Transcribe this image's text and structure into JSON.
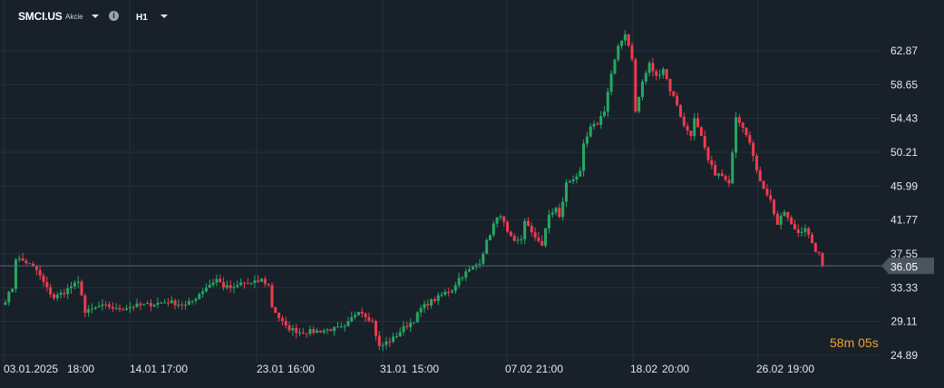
{
  "header": {
    "symbol": "SMCI.US",
    "asset_type": "Akcie",
    "timeframe": "H1",
    "info_icon": "info-icon",
    "symbol_dropdown_icon": "chevron-down-icon",
    "timeframe_dropdown_icon": "chevron-down-icon"
  },
  "countdown": {
    "minutes": "58",
    "minutes_unit": "m",
    "seconds": "05",
    "seconds_unit": "s"
  },
  "colors": {
    "background": "#18212a",
    "grid": "#26313a",
    "bull": "#26a862",
    "bear": "#ef3b4e",
    "price_line": "#5b6672",
    "price_tag_bg": "#4b5560",
    "axis_text": "#e2e7ec",
    "countdown": "#f2a32b"
  },
  "chart_data": {
    "type": "candlestick",
    "title": "",
    "y_axis": {
      "ticks": [
        "62.87",
        "58.65",
        "54.43",
        "50.21",
        "45.99",
        "41.77",
        "37.55",
        "33.33",
        "29.11",
        "24.89"
      ],
      "range": [
        24.0,
        66.0
      ]
    },
    "x_axis": {
      "ticks": [
        "03.01.2025",
        "18:00",
        "14.01",
        "17:00",
        "23.01",
        "16:00",
        "31.01",
        "15:00",
        "07.02",
        "21:00",
        "18.02",
        "20:00",
        "26.02",
        "19:00"
      ]
    },
    "last_price": "36.05",
    "last_price_value": 36.05,
    "grid": true,
    "close_path": [
      [
        0,
        31.8
      ],
      [
        2,
        33.3
      ],
      [
        3,
        37.0
      ],
      [
        6,
        36.5
      ],
      [
        9,
        35.5
      ],
      [
        12,
        33.2
      ],
      [
        14,
        32.1
      ],
      [
        17,
        32.8
      ],
      [
        19,
        33.5
      ],
      [
        21,
        33.9
      ],
      [
        22,
        32.6
      ],
      [
        23,
        30.2
      ],
      [
        25,
        30.6
      ],
      [
        27,
        31.0
      ],
      [
        30,
        31.0
      ],
      [
        32,
        30.6
      ],
      [
        35,
        30.9
      ],
      [
        38,
        31.1
      ],
      [
        41,
        31.2
      ],
      [
        44,
        31.4
      ],
      [
        47,
        31.6
      ],
      [
        50,
        31.3
      ],
      [
        52,
        31.1
      ],
      [
        54,
        31.7
      ],
      [
        56,
        32.6
      ],
      [
        58,
        33.4
      ],
      [
        61,
        34.4
      ],
      [
        63,
        33.5
      ],
      [
        66,
        33.2
      ],
      [
        68,
        33.9
      ],
      [
        71,
        33.8
      ],
      [
        74,
        34.3
      ],
      [
        76,
        33.6
      ],
      [
        77,
        31.0
      ],
      [
        79,
        29.6
      ],
      [
        81,
        28.4
      ],
      [
        85,
        27.8
      ],
      [
        90,
        27.9
      ],
      [
        95,
        28.2
      ],
      [
        98,
        28.3
      ],
      [
        100,
        29.5
      ],
      [
        102,
        30.6
      ],
      [
        104,
        29.9
      ],
      [
        106,
        29.1
      ],
      [
        108,
        25.9
      ],
      [
        110,
        26.5
      ],
      [
        112,
        27.0
      ],
      [
        115,
        28.3
      ],
      [
        118,
        29.3
      ],
      [
        120,
        30.7
      ],
      [
        122,
        31.4
      ],
      [
        125,
        32.1
      ],
      [
        127,
        32.7
      ],
      [
        129,
        33.1
      ],
      [
        131,
        34.5
      ],
      [
        133,
        35.2
      ],
      [
        135,
        35.8
      ],
      [
        137,
        36.6
      ],
      [
        139,
        39.0
      ],
      [
        141,
        41.2
      ],
      [
        143,
        42.5
      ],
      [
        145,
        40.1
      ],
      [
        147,
        38.9
      ],
      [
        149,
        39.4
      ],
      [
        150,
        41.8
      ],
      [
        152,
        40.0
      ],
      [
        154,
        39.3
      ],
      [
        155,
        38.6
      ],
      [
        157,
        42.4
      ],
      [
        159,
        43.2
      ],
      [
        160,
        42.0
      ],
      [
        162,
        46.3
      ],
      [
        164,
        47.0
      ],
      [
        166,
        47.6
      ],
      [
        167,
        51.0
      ],
      [
        169,
        53.2
      ],
      [
        171,
        53.8
      ],
      [
        173,
        55.5
      ],
      [
        175,
        60.0
      ],
      [
        177,
        63.2
      ],
      [
        179,
        65.1
      ],
      [
        181,
        62.0
      ],
      [
        182,
        55.2
      ],
      [
        184,
        59.0
      ],
      [
        186,
        61.2
      ],
      [
        188,
        59.6
      ],
      [
        190,
        60.7
      ],
      [
        192,
        58.0
      ],
      [
        194,
        56.2
      ],
      [
        196,
        53.4
      ],
      [
        198,
        52.5
      ],
      [
        199,
        54.3
      ],
      [
        201,
        52.0
      ],
      [
        203,
        49.1
      ],
      [
        205,
        47.6
      ],
      [
        207,
        47.2
      ],
      [
        209,
        46.1
      ],
      [
        211,
        54.8
      ],
      [
        213,
        53.5
      ],
      [
        215,
        51.7
      ],
      [
        217,
        47.7
      ],
      [
        219,
        45.9
      ],
      [
        221,
        44.2
      ],
      [
        223,
        41.2
      ],
      [
        225,
        42.8
      ],
      [
        227,
        41.1
      ],
      [
        229,
        40.2
      ],
      [
        231,
        40.9
      ],
      [
        233,
        38.6
      ],
      [
        235,
        37.4
      ],
      [
        236,
        36.05
      ]
    ]
  }
}
